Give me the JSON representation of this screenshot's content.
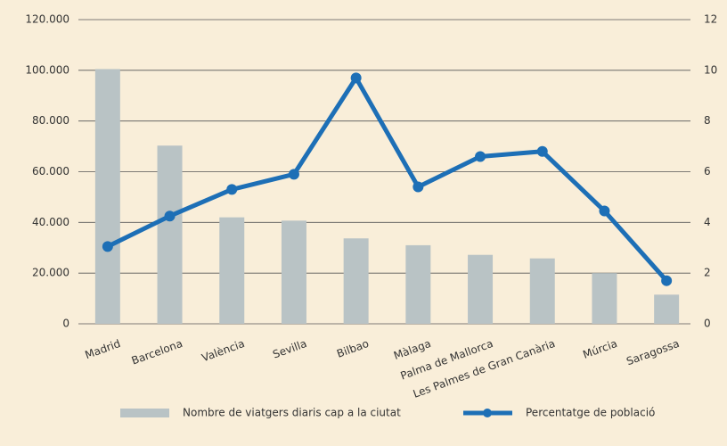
{
  "chart_data": {
    "type": "bar-line",
    "categories": [
      "Madrid",
      "Barcelona",
      "València",
      "Sevilla",
      "Bilbao",
      "Màlaga",
      "Palma de Mallorca",
      "Les Palmes de Gran Canària",
      "Múrcia",
      "Saragossa"
    ],
    "series": [
      {
        "name": "Nombre de viatgers diaris cap a la ciutat",
        "type": "bar",
        "color": "#b9c3c5",
        "axis": "y",
        "values": [
          100500,
          70300,
          42000,
          40700,
          33700,
          31000,
          27200,
          25800,
          20000,
          11500
        ]
      },
      {
        "name": "Percentatge de població",
        "type": "line",
        "color": "#1d6fb6",
        "axis": "y2",
        "values": [
          3.05,
          4.25,
          5.3,
          5.9,
          9.7,
          5.4,
          6.6,
          6.8,
          4.45,
          1.7
        ]
      }
    ],
    "ylim": [
      0,
      120000
    ],
    "yticks": [
      0,
      {
        "value": 20000,
        "label": "20.000"
      },
      {
        "value": 40000,
        "label": "40.000"
      },
      {
        "value": 60000,
        "label": "60.000"
      },
      {
        "value": 80000,
        "label": "80.000"
      },
      {
        "value": 100000,
        "label": "100.000"
      },
      {
        "value": 120000,
        "label": "120.000"
      }
    ],
    "y2lim": [
      0,
      12
    ],
    "y2ticks": [
      0,
      2,
      4,
      6,
      8,
      10,
      12
    ],
    "grid": true
  }
}
